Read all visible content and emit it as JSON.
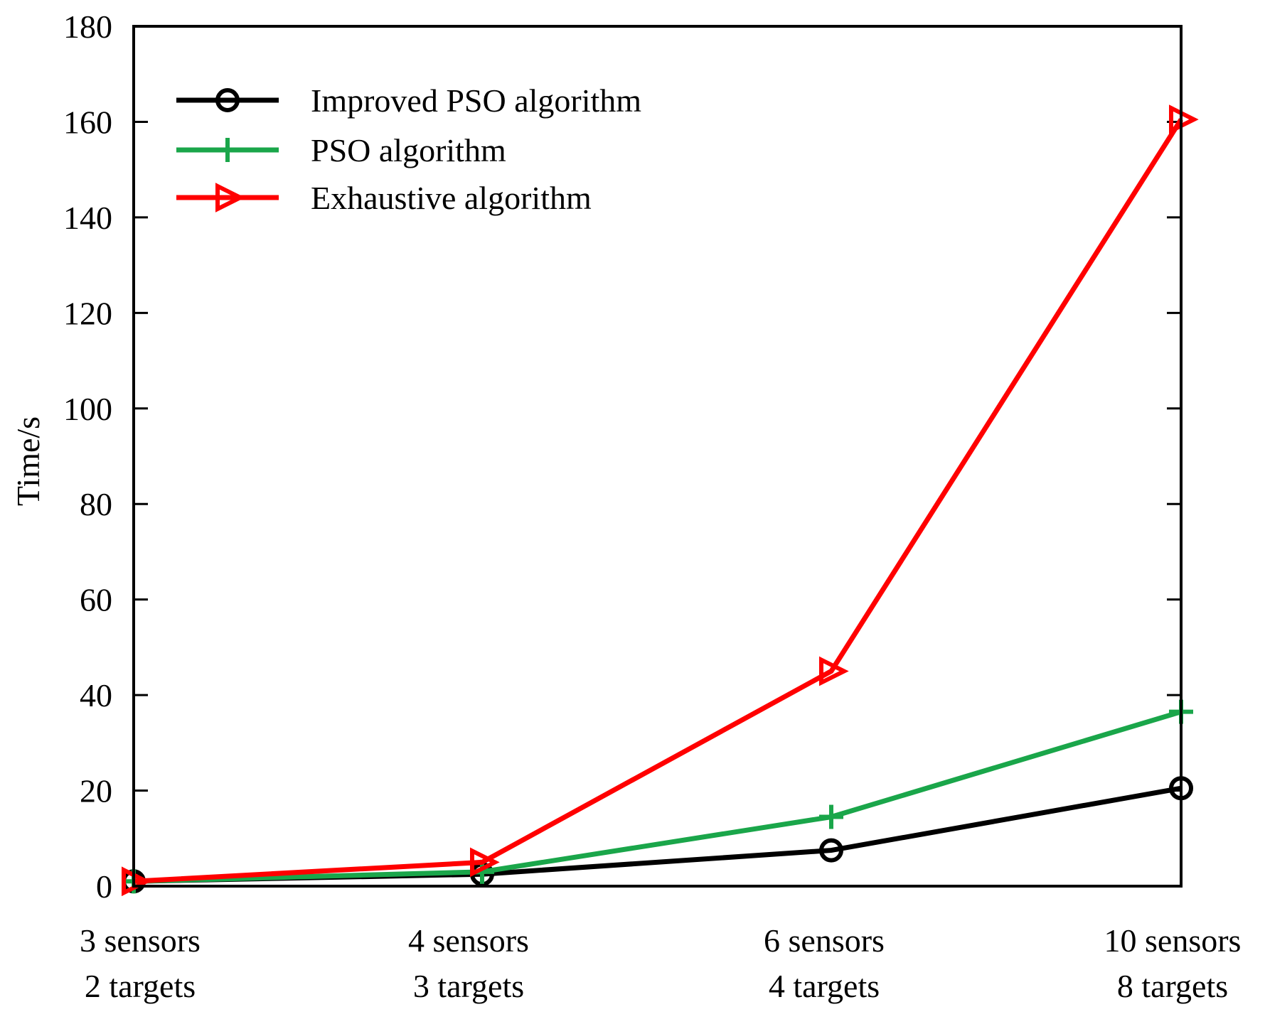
{
  "chart_data": {
    "type": "line",
    "title": "",
    "xlabel": "",
    "ylabel": "Time/s",
    "ylim": [
      0,
      180
    ],
    "yticks": [
      0,
      20,
      40,
      60,
      80,
      100,
      120,
      140,
      160,
      180
    ],
    "grid": false,
    "legend_position": "top-left",
    "categories": [
      {
        "line1": "3 sensors",
        "line2": "2 targets"
      },
      {
        "line1": "4 sensors",
        "line2": "3 targets"
      },
      {
        "line1": "6 sensors",
        "line2": "4 targets"
      },
      {
        "line1": "10 sensors",
        "line2": "8  targets"
      }
    ],
    "series": [
      {
        "name": "Improved PSO algorithm",
        "color": "#000000",
        "marker": "circle",
        "values": [
          1,
          2.5,
          7.5,
          20.5
        ]
      },
      {
        "name": "PSO algorithm",
        "color": "#1aa64a",
        "marker": "plus",
        "values": [
          1,
          3,
          14.5,
          36.5
        ]
      },
      {
        "name": "Exhaustive algorithm",
        "color": "#ff0000",
        "marker": "triangle-right",
        "values": [
          1,
          5,
          45,
          160.5
        ]
      }
    ]
  }
}
